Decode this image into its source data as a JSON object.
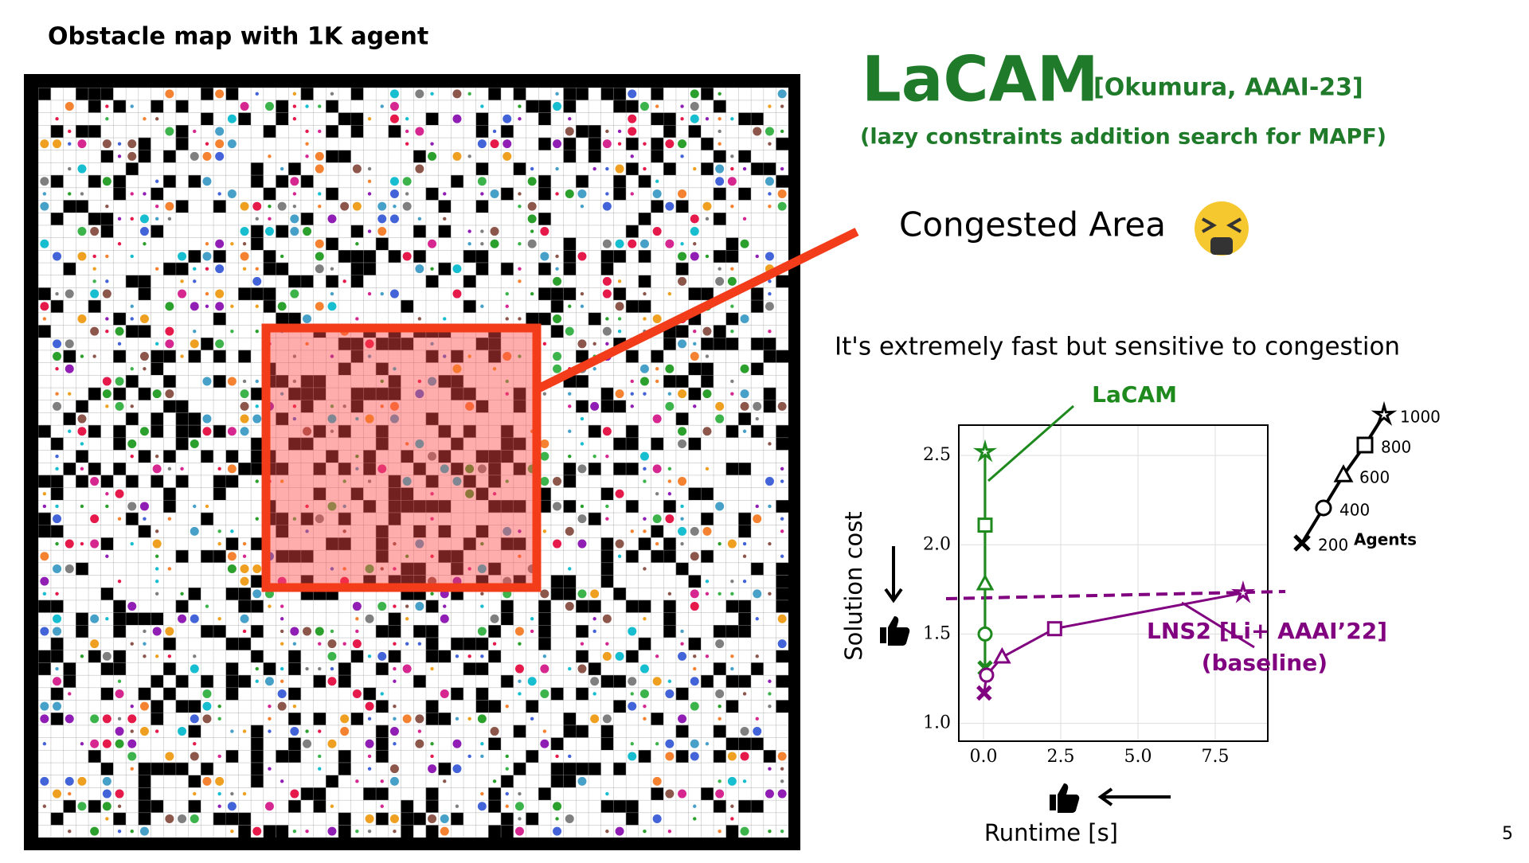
{
  "header": {
    "title": "Obstacle map with 1K agent"
  },
  "method": {
    "name": "LaCAM",
    "citation": "[Okumura, AAAI-23]",
    "subtitle": "(lazy constraints addition search for MAPF)"
  },
  "callout": "Congested Area",
  "summary": "It's extremely fast but sensitive to congestion",
  "page_number": "5",
  "chart_data": {
    "type": "line",
    "xlabel": "Runtime [s]",
    "ylabel": "Solution cost",
    "xlim": [
      -0.8,
      9.2
    ],
    "ylim": [
      0.9,
      2.67
    ],
    "xticks": [
      {
        "value": 0,
        "label": "0.0"
      },
      {
        "value": 2.5,
        "label": "2.5"
      },
      {
        "value": 5,
        "label": "5.0"
      },
      {
        "value": 7.5,
        "label": "7.5"
      }
    ],
    "yticks": [
      {
        "value": 1,
        "label": "1.0"
      },
      1.5,
      {
        "value": 2,
        "label": "2.0"
      },
      2.5
    ],
    "grid": true,
    "markers": [
      "x",
      "circle",
      "triangle",
      "square",
      "star"
    ],
    "legend": {
      "title": "Agents",
      "labels": [
        200,
        400,
        600,
        800,
        1000
      ]
    },
    "series": [
      {
        "name": "LaCAM",
        "color": "#1e8a1e",
        "x": [
          0.05,
          0.05,
          0.05,
          0.05,
          0.05
        ],
        "values": [
          1.31,
          1.5,
          1.78,
          2.11,
          2.52
        ]
      },
      {
        "name": "LNS2 [Li+ AAAI’22]",
        "note": "(baseline)",
        "color": "#800080",
        "x": [
          0.02,
          0.1,
          0.6,
          2.3,
          8.4
        ],
        "values": [
          1.17,
          1.27,
          1.37,
          1.53,
          1.73
        ]
      }
    ]
  }
}
